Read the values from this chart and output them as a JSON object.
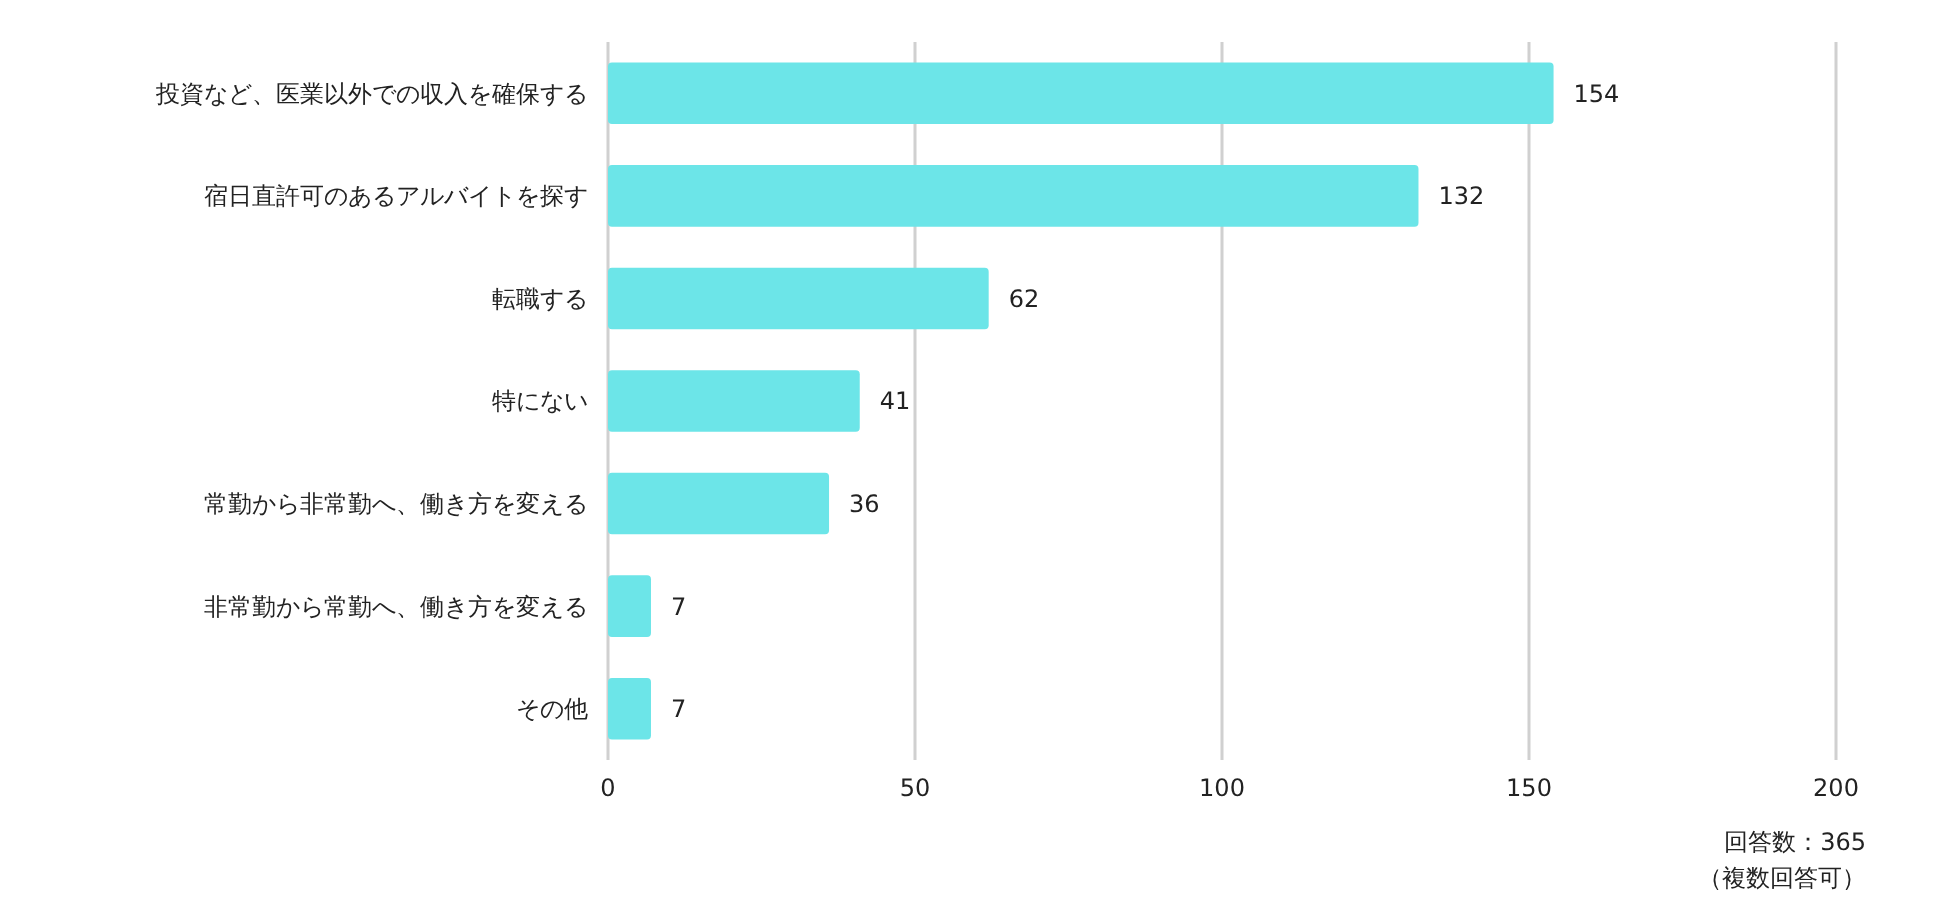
{
  "chart_data": {
    "type": "bar",
    "orientation": "horizontal",
    "categories": [
      "投資など、医業以外での収入を確保する",
      "宿日直許可のあるアルバイトを探す",
      "転職する",
      "特にない",
      "常勤から非常勤へ、働き方を変える",
      "非常勤から常勤へ、働き方を変える",
      "その他"
    ],
    "values": [
      154,
      132,
      62,
      41,
      36,
      7,
      7
    ],
    "color": "#6ce5e8",
    "xlim": [
      0,
      200
    ],
    "xticks": [
      0,
      50,
      100,
      150,
      200
    ],
    "grid": "x",
    "data_labels": true,
    "annotations": [
      "回答数：365",
      "（複数回答可）"
    ]
  }
}
